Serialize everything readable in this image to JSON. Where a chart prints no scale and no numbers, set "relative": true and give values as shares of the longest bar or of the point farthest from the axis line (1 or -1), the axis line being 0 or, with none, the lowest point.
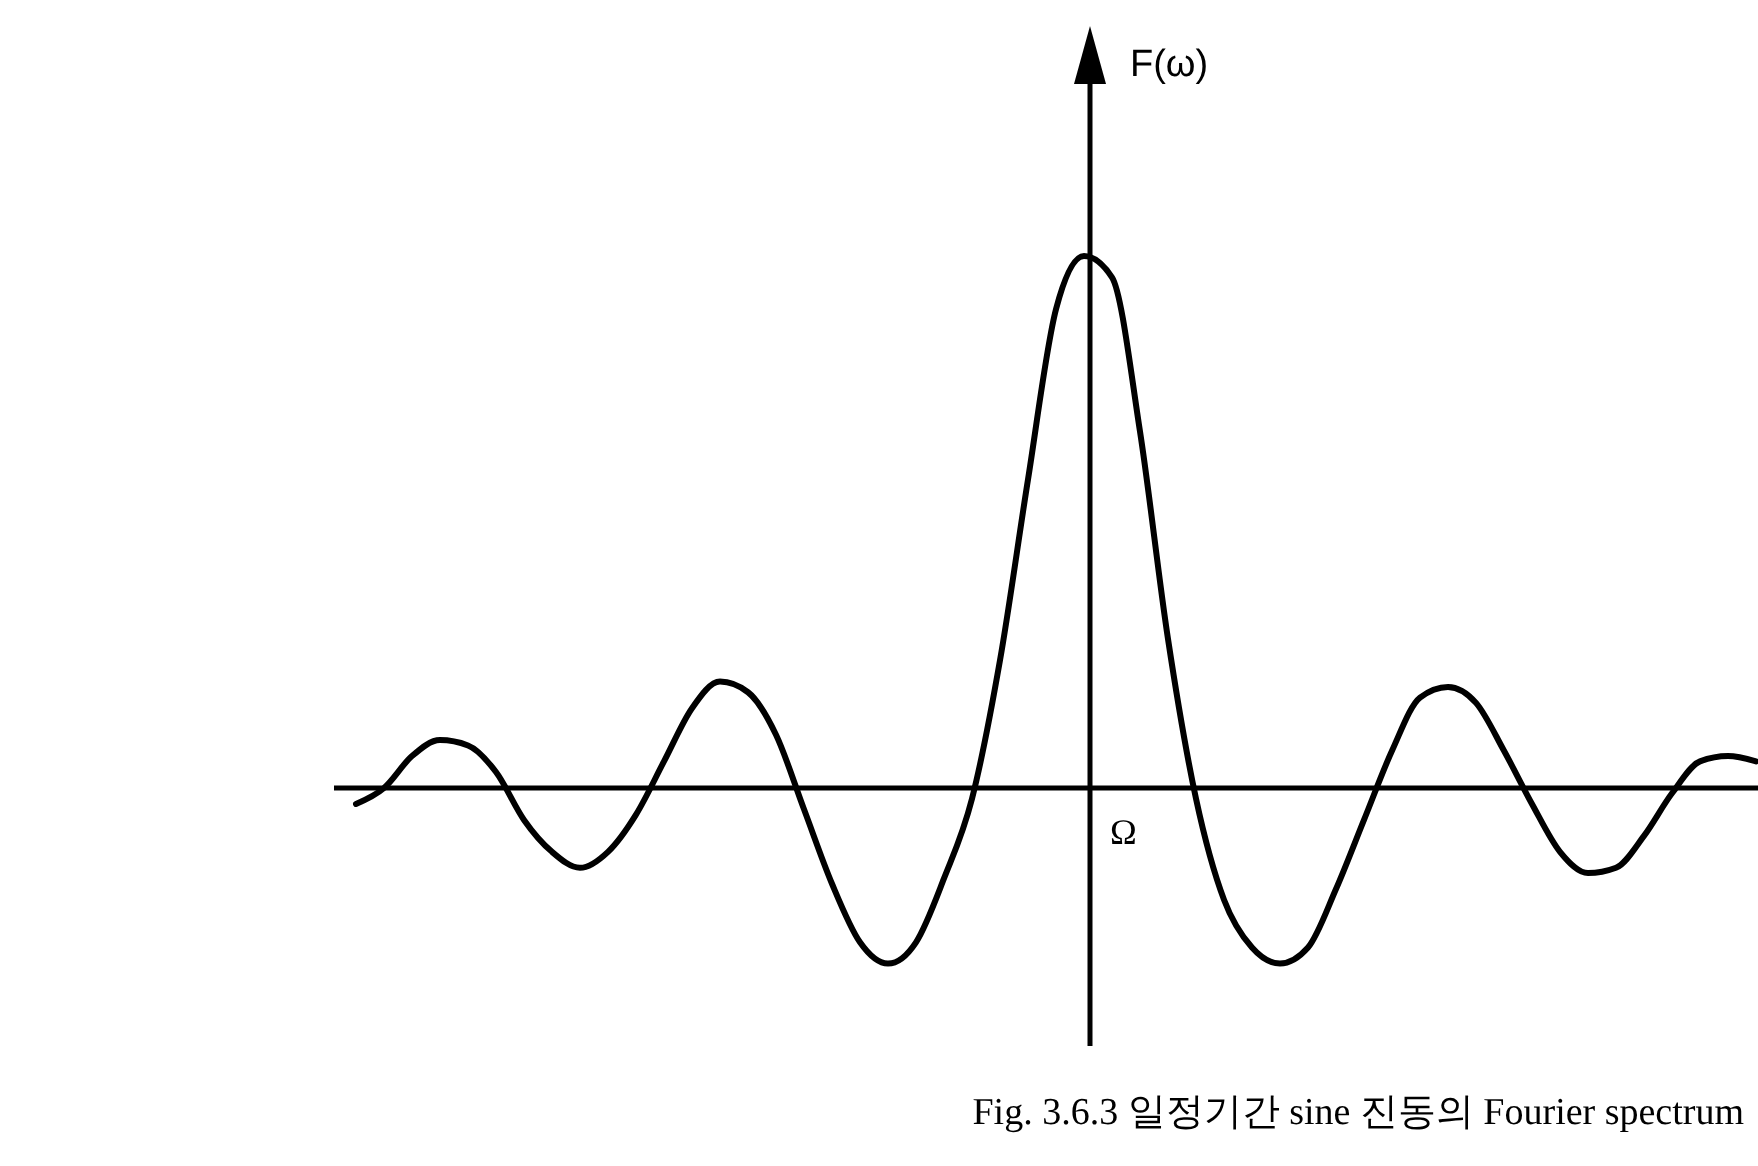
{
  "chart_data": {
    "type": "line",
    "relative": true,
    "title": "Fig. 3.6.3  일정기간 sine 진동의 Fourier spectrum",
    "ylabel": "F(ω)",
    "annotations": [
      "Ω"
    ],
    "categories": [
      null,
      null,
      null,
      null,
      null,
      null,
      null,
      null,
      null,
      null,
      null,
      null,
      null,
      null,
      null,
      null,
      null,
      null,
      null,
      null,
      null,
      null,
      null,
      null,
      null,
      null,
      null,
      null,
      null,
      null,
      null,
      null,
      null,
      null,
      null,
      null,
      null,
      null,
      null,
      null,
      null,
      null,
      null,
      null,
      null,
      null,
      null,
      null,
      null,
      null,
      null
    ],
    "series": [
      {
        "color": "#000000",
        "values": [
          -0.03,
          0.0,
          0.06,
          0.09,
          0.08,
          0.03,
          -0.06,
          -0.12,
          -0.15,
          -0.12,
          -0.05,
          0.05,
          0.15,
          0.2,
          0.18,
          0.1,
          -0.04,
          -0.18,
          -0.29,
          -0.33,
          -0.29,
          -0.17,
          -0.02,
          0.24,
          0.58,
          0.9,
          1.0,
          0.96,
          0.67,
          0.28,
          -0.02,
          -0.21,
          -0.3,
          -0.33,
          -0.3,
          -0.19,
          -0.06,
          0.07,
          0.17,
          0.19,
          0.16,
          0.07,
          -0.03,
          -0.12,
          -0.16,
          -0.15,
          -0.09,
          -0.01,
          0.05,
          0.06,
          0.05
        ]
      }
    ],
    "marker": "none",
    "line_style": "solid"
  }
}
